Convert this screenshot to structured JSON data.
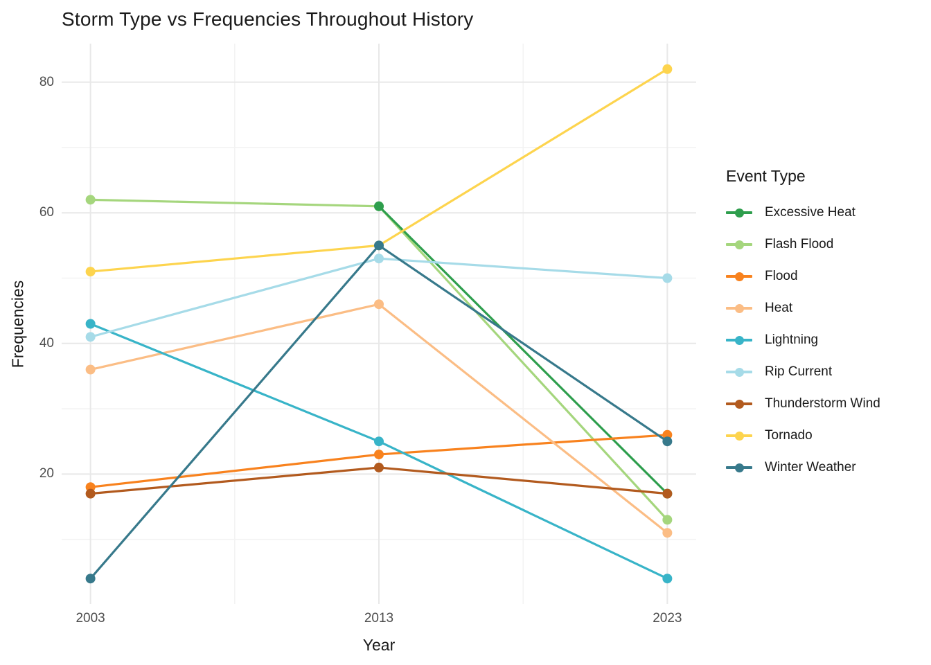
{
  "title": "Storm Type vs Frequencies Throughout History",
  "chart_data": {
    "type": "line",
    "title": "Storm Type vs Frequencies Throughout History",
    "xlabel": "Year",
    "ylabel": "Frequencies",
    "x": [
      2003,
      2013,
      2023
    ],
    "x_tick_labels": [
      "2003",
      "2013",
      "2023"
    ],
    "y_major_ticks": [
      20,
      40,
      60,
      80
    ],
    "y_minor_gridlines": [
      10,
      30,
      50,
      70
    ],
    "x_major_gridlines": [
      2003,
      2013,
      2023
    ],
    "x_minor_gridlines": [
      2008,
      2018
    ],
    "xlim": [
      2002,
      2024
    ],
    "ylim": [
      0.1,
      85.9
    ],
    "grid": true,
    "legend_title": "Event Type",
    "legend_position": "right",
    "series": [
      {
        "name": "Excessive Heat",
        "color": "#2e9e4d",
        "values": [
          null,
          61,
          17
        ]
      },
      {
        "name": "Flash Flood",
        "color": "#a5d67d",
        "values": [
          62,
          61,
          13
        ]
      },
      {
        "name": "Flood",
        "color": "#f8821e",
        "values": [
          18,
          23,
          26
        ]
      },
      {
        "name": "Heat",
        "color": "#fbbd85",
        "values": [
          36,
          46,
          11
        ]
      },
      {
        "name": "Lightning",
        "color": "#38b4c8",
        "values": [
          43,
          25,
          4
        ]
      },
      {
        "name": "Rip Current",
        "color": "#a6dbe8",
        "values": [
          41,
          53,
          50
        ]
      },
      {
        "name": "Thunderstorm Wind",
        "color": "#b25a1e",
        "values": [
          17,
          21,
          17
        ]
      },
      {
        "name": "Tornado",
        "color": "#fdd44e",
        "values": [
          51,
          55,
          82
        ]
      },
      {
        "name": "Winter Weather",
        "color": "#37798b",
        "values": [
          4,
          55,
          25
        ]
      }
    ]
  },
  "colors": {
    "background": "#ffffff",
    "grid_major": "#e8e8e8",
    "grid_minor": "#f3f3f3",
    "tick_label": "#4d4d4d",
    "text": "#1a1a1a"
  }
}
